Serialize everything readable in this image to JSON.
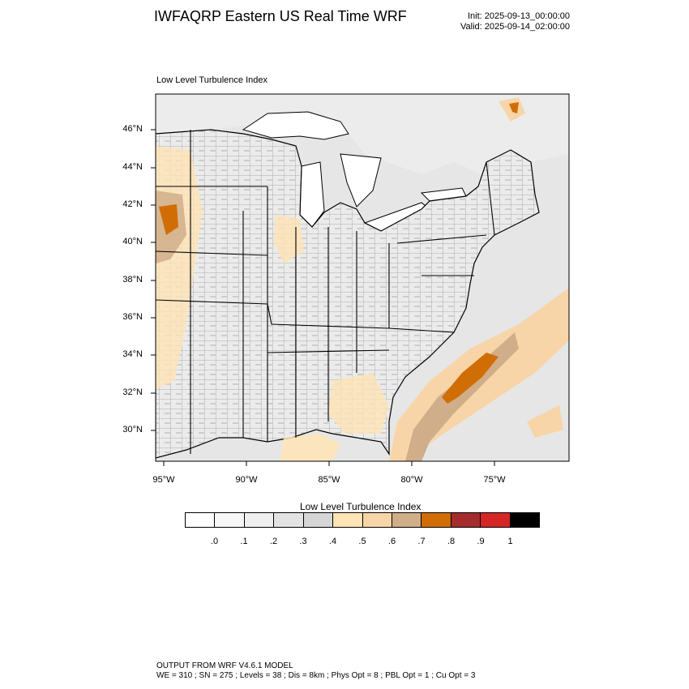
{
  "header": {
    "title": "IWFAQRP Eastern US Real Time WRF",
    "init": "Init: 2025-09-13_00:00:00",
    "valid": "Valid: 2025-09-14_02:00:00"
  },
  "map": {
    "panel_title": "Low Level Turbulence Index",
    "lat_labels": [
      "46°N",
      "44°N",
      "42°N",
      "40°N",
      "38°N",
      "36°N",
      "34°N",
      "32°N",
      "30°N"
    ],
    "lon_labels": [
      "95°W",
      "90°W",
      "85°W",
      "80°W",
      "75°W"
    ],
    "ocean_color": "#e6e6e6",
    "land_color": "#ebebeb"
  },
  "colorbar": {
    "title": "Low Level Turbulence Index",
    "colors": [
      "#ffffff",
      "#f7f7f7",
      "#efefef",
      "#e3e3e3",
      "#d6d6d6",
      "#ffe4b5",
      "#f8d5a8",
      "#d0ae8a",
      "#d06e05",
      "#a52c2c",
      "#d42626",
      "#000000"
    ],
    "labels": [
      ".0",
      ".1",
      ".2",
      ".3",
      ".4",
      ".5",
      ".6",
      ".7",
      ".8",
      ".9",
      "1"
    ]
  },
  "footer": {
    "line1": "OUTPUT FROM WRF V4.6.1 MODEL",
    "line2": "WE = 310 ; SN = 275 ; Levels = 38 ; Dis = 8km ; Phys Opt = 8 ; PBL Opt = 1 ; Cu Opt = 3"
  }
}
